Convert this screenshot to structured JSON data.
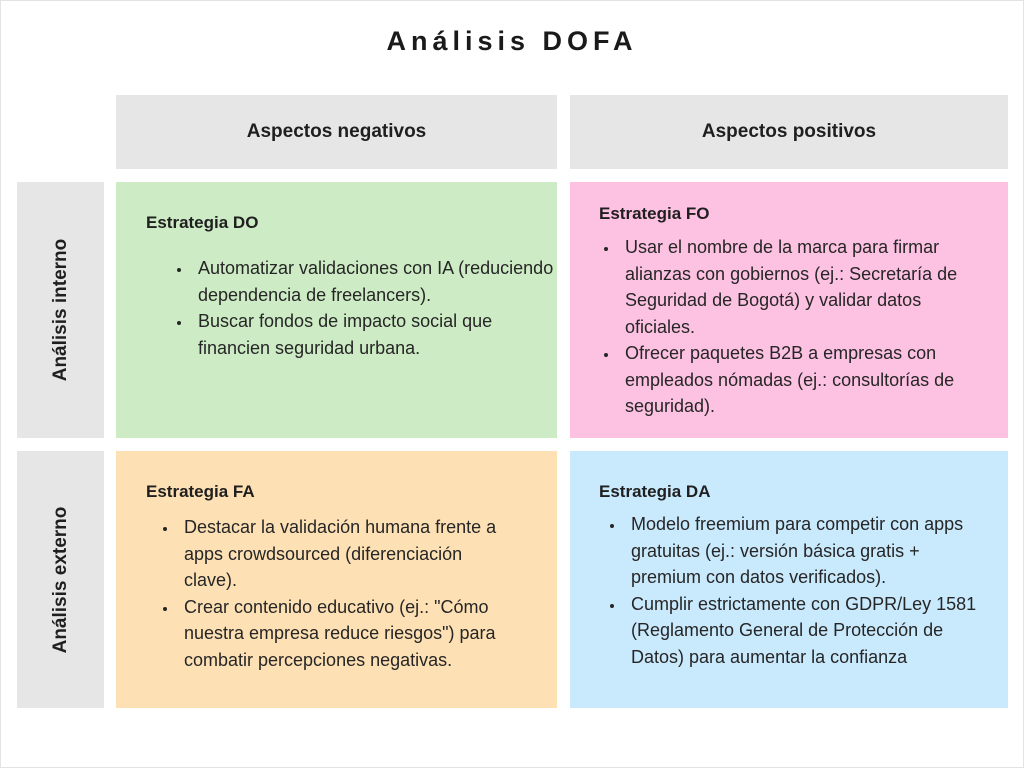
{
  "title": "Análisis DOFA",
  "columns": {
    "negative": "Aspectos negativos",
    "positive": "Aspectos positivos"
  },
  "rows": {
    "internal": "Análisis interno",
    "external": "Análisis externo"
  },
  "colors": {
    "header_bg": "#e6e6e6",
    "do_bg": "#cdebc4",
    "fo_bg": "#fdc1e2",
    "fa_bg": "#fde0b4",
    "da_bg": "#c9e9fd"
  },
  "cells": {
    "do": {
      "heading": "Estrategia DO",
      "items": [
        "Automatizar validaciones con IA (reduciendo dependencia de freelancers).",
        "Buscar fondos de impacto social que financien seguridad urbana."
      ]
    },
    "fo": {
      "heading": "Estrategia FO",
      "items": [
        "Usar el nombre de la marca para firmar alianzas con gobiernos (ej.: Secretaría de Seguridad de Bogotá) y validar datos oficiales.",
        "Ofrecer paquetes B2B a empresas con empleados nómadas (ej.: consultorías de seguridad)."
      ]
    },
    "fa": {
      "heading": "Estrategia FA",
      "items": [
        "Destacar la validación humana frente a apps crowdsourced (diferenciación clave).",
        "Crear contenido educativo (ej.: \"Cómo nuestra empresa reduce riesgos\") para combatir percepciones negativas."
      ]
    },
    "da": {
      "heading": "Estrategia DA",
      "items": [
        "Modelo freemium para competir con apps gratuitas (ej.: versión básica gratis + premium con datos verificados).",
        "Cumplir estrictamente con GDPR/Ley 1581 (Reglamento General de Protección de Datos) para aumentar la confianza"
      ]
    }
  }
}
